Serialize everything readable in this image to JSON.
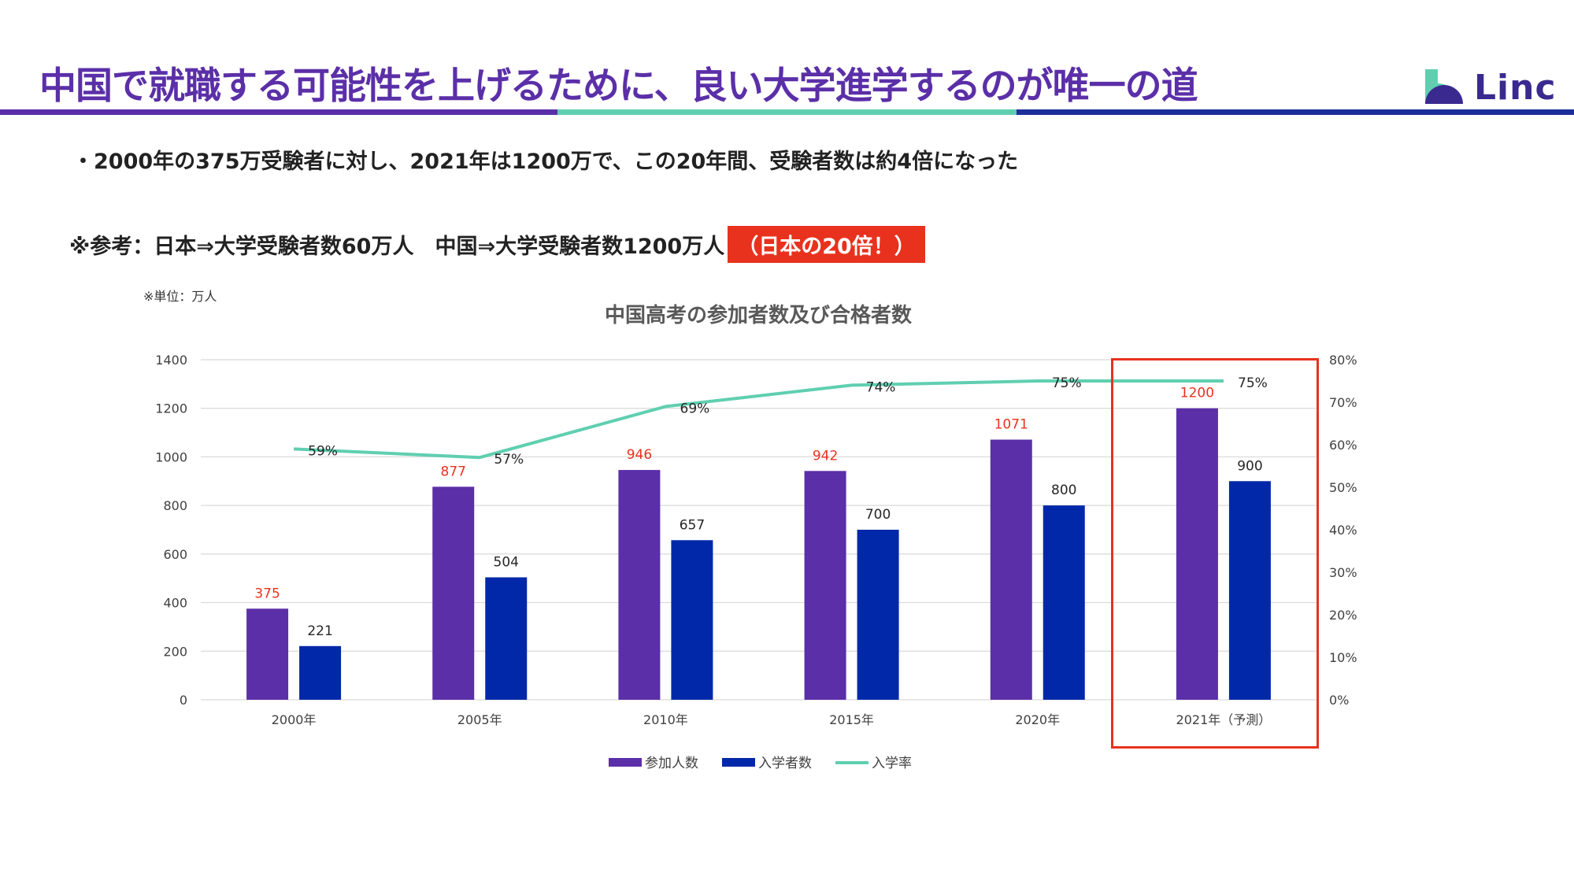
{
  "header": {
    "title": "中国で就職する可能性を上げるために、良い大学進学するのが唯一の道",
    "logo_text": "Linc"
  },
  "bullet": "・2000年の375万受験者に対し、2021年は1200万で、この20年間、受験者数は約4倍になった",
  "note": {
    "text": "※参考：日本⇒大学受験者数60万人　中国⇒大学受験者数1200万人",
    "highlight": "（日本の20倍！）"
  },
  "unit_note": "※単位：万人",
  "colors": {
    "brand_purple": "#5b2fa8",
    "brand_teal": "#5fcfb0",
    "brand_navy": "#1e2f9a",
    "participants": "#5b2fa8",
    "admitted": "#0028a8",
    "rate": "#5fcfb0",
    "highlight": "#e8321e"
  },
  "chart_data": {
    "type": "bar",
    "title": "中国高考の参加者数及び合格者数",
    "categories": [
      "2000年",
      "2005年",
      "2010年",
      "2015年",
      "2020年",
      "2021年（予測）"
    ],
    "series": [
      {
        "name": "参加人数",
        "kind": "bar",
        "axis": "left",
        "values": [
          375,
          877,
          946,
          942,
          1071,
          1200
        ]
      },
      {
        "name": "入学者数",
        "kind": "bar",
        "axis": "left",
        "values": [
          221,
          504,
          657,
          700,
          800,
          900
        ]
      },
      {
        "name": "入学率",
        "kind": "line",
        "axis": "right",
        "values": [
          59,
          57,
          69,
          74,
          75,
          75
        ]
      }
    ],
    "left_axis": {
      "min": 0,
      "max": 1400,
      "ticks": [
        "0",
        "200",
        "400",
        "600",
        "800",
        "1000",
        "1200",
        "1400"
      ]
    },
    "right_axis": {
      "min": 0,
      "max": 80,
      "ticks": [
        "0%",
        "10%",
        "20%",
        "30%",
        "40%",
        "50%",
        "60%",
        "70%",
        "80%"
      ]
    },
    "grid": true,
    "legend": "bottom",
    "highlighted_category": "2021年（予測）"
  }
}
